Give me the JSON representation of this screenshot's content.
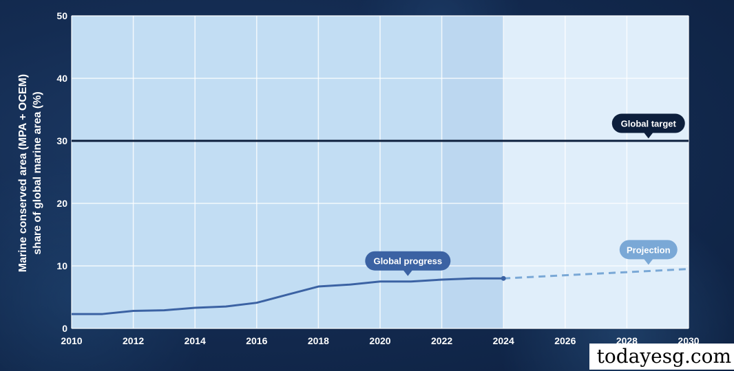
{
  "chart_data": {
    "type": "line",
    "ylabel_line1": "Marine conserved area (MPA + OCEM)",
    "ylabel_line2": "share of global marine area (%)",
    "xlim": [
      2010,
      2030
    ],
    "ylim": [
      0,
      50
    ],
    "x_ticks": [
      "2010",
      "2012",
      "2014",
      "2016",
      "2018",
      "2020",
      "2022",
      "2024",
      "2026",
      "2028",
      "2030"
    ],
    "y_ticks": [
      "0",
      "10",
      "20",
      "30",
      "40",
      "50"
    ],
    "grid": true,
    "series": [
      {
        "name": "Global progress",
        "color": "#3b62a3",
        "style": "solid",
        "x": [
          2010,
          2011,
          2012,
          2013,
          2014,
          2015,
          2016,
          2017,
          2018,
          2019,
          2020,
          2021,
          2022,
          2023,
          2024
        ],
        "y": [
          2.3,
          2.3,
          2.8,
          2.9,
          3.3,
          3.5,
          4.1,
          5.4,
          6.7,
          7.0,
          7.5,
          7.5,
          7.8,
          8.0,
          8.0
        ]
      },
      {
        "name": "Projection",
        "color": "#7aa8d6",
        "style": "dashed",
        "x": [
          2024,
          2030
        ],
        "y": [
          8.0,
          9.5
        ]
      }
    ],
    "target": {
      "name": "Global target",
      "value": 30,
      "color": "#0d1f3c"
    },
    "shaded_regions": [
      {
        "from": 2010,
        "to": 2024,
        "color": "#c2ddf3"
      },
      {
        "from": 2024,
        "to": 2030,
        "color": "#e0eefa"
      }
    ],
    "callouts": {
      "progress": {
        "label": "Global progress",
        "color": "#3b62a3"
      },
      "projection": {
        "label": "Projection",
        "color": "#7aa8d6"
      },
      "target": {
        "label": "Global target",
        "color": "#0d1f3c"
      }
    }
  },
  "watermark": "todayesg.com"
}
